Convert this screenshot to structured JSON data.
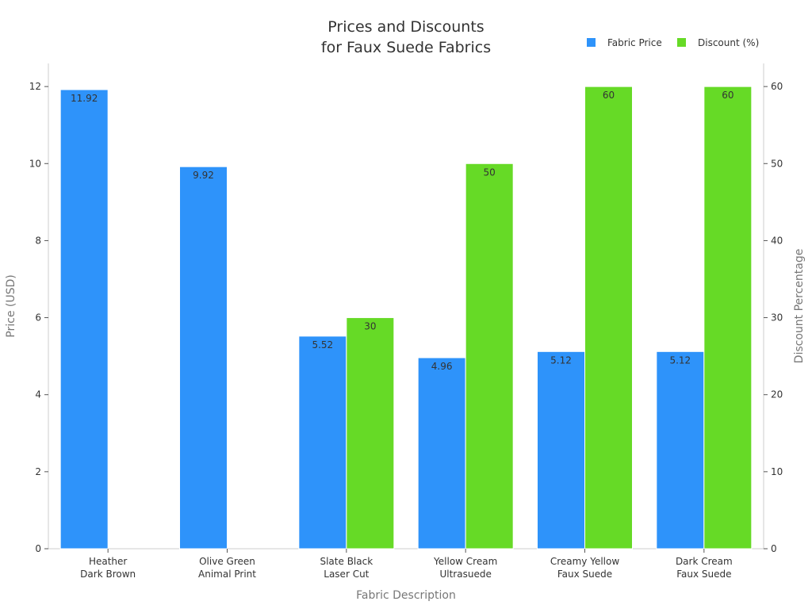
{
  "chart_data": {
    "type": "bar",
    "title_lines": [
      "Prices and Discounts",
      "for Faux Suede Fabrics"
    ],
    "categories": [
      [
        "Heather",
        "Dark Brown"
      ],
      [
        "Olive Green",
        "Animal Print"
      ],
      [
        "Slate Black",
        "Laser Cut"
      ],
      [
        "Yellow Cream",
        "Ultrasuede"
      ],
      [
        "Creamy Yellow",
        "Faux Suede"
      ],
      [
        "Dark Cream",
        "Faux Suede"
      ]
    ],
    "xlabel": "Fabric Description",
    "ylabel": "Price (USD)",
    "y2label": "Discount Percentage",
    "ylim": [
      0,
      12.6
    ],
    "y2lim": [
      0,
      63
    ],
    "yticks": [
      0,
      2,
      4,
      6,
      8,
      10,
      12
    ],
    "y2ticks": [
      0,
      10,
      20,
      30,
      40,
      50,
      60
    ],
    "legend_position": "top-right",
    "series": [
      {
        "name": "Fabric Price",
        "axis": "left",
        "color": "#2e93fa",
        "values": [
          11.92,
          9.92,
          5.52,
          4.96,
          5.12,
          5.12
        ],
        "labels": [
          "11.92",
          "9.92",
          "5.52",
          "4.96",
          "5.12",
          "5.12"
        ]
      },
      {
        "name": "Discount (%)",
        "axis": "right",
        "color": "#66da26",
        "values": [
          0,
          0,
          30,
          50,
          60,
          60
        ],
        "labels": [
          "",
          "",
          "30",
          "50",
          "60",
          "60"
        ]
      }
    ]
  }
}
